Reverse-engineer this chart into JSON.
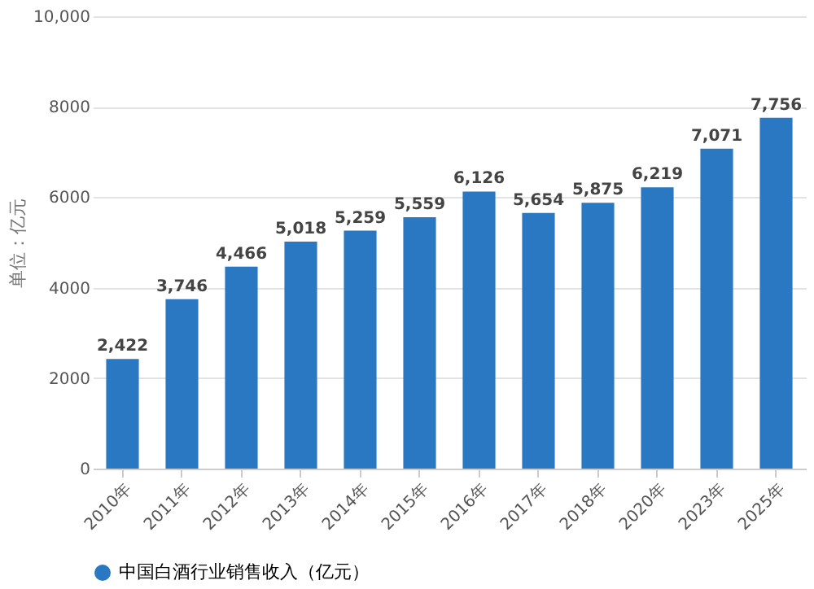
{
  "chart_data": {
    "type": "bar",
    "ylabel": "单位：亿元",
    "categories": [
      "2010年",
      "2011年",
      "2012年",
      "2013年",
      "2014年",
      "2015年",
      "2016年",
      "2017年",
      "2018年",
      "2020年",
      "2023年",
      "2025年"
    ],
    "series": [
      {
        "name": "中国白酒行业销售收入（亿元）",
        "color": "#2a78c2",
        "values": [
          2422,
          3746,
          4466,
          5018,
          5259,
          5559,
          6126,
          5654,
          5875,
          6219,
          7071,
          7756
        ],
        "value_labels": [
          "2,422",
          "3,746",
          "4,466",
          "5,018",
          "5,259",
          "5,559",
          "6,126",
          "5,654",
          "5,875",
          "6,219",
          "7,071",
          "7,756"
        ]
      }
    ],
    "ylim": [
      0,
      10000
    ],
    "yticks": [
      0,
      2000,
      4000,
      6000,
      8000,
      {
        "value": 10000,
        "label": "10,000"
      }
    ],
    "grid": "y",
    "legend": "bottom"
  }
}
